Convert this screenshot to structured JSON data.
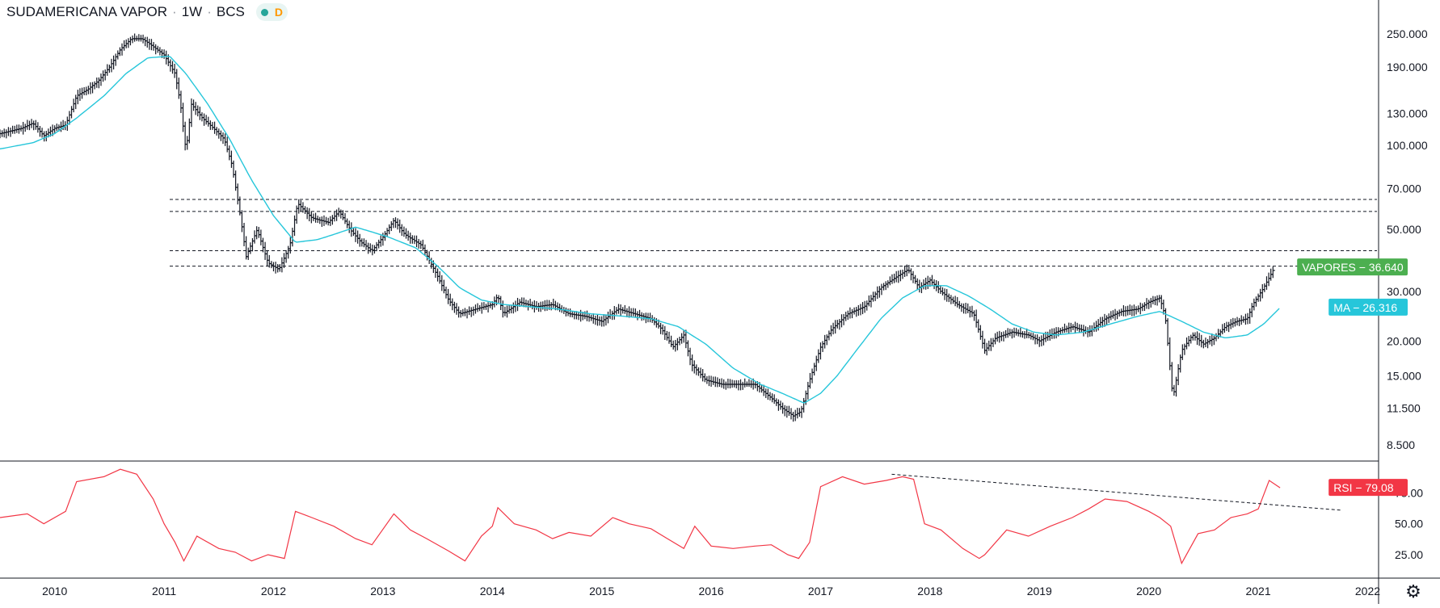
{
  "header": {
    "symbol_name": "SUDAMERICANA VAPOR",
    "interval": "1W",
    "exchange": "BCS",
    "status_label": "D"
  },
  "colors": {
    "candle": "#131722",
    "ma": "#26c6da",
    "rsi": "#f23645",
    "price_badge": "#4caf50",
    "ma_badge": "#26c6da",
    "rsi_badge": "#f23645",
    "dashed": "#131722",
    "axis": "#131722"
  },
  "icons": {
    "settings": "gear-icon",
    "status": "dot-icon"
  },
  "chart_data": [
    {
      "type": "ohlc",
      "title": "SUDAMERICANA VAPOR · 1W · BCS",
      "scale": "log",
      "ylim": [
        7500,
        330000
      ],
      "y_ticks": [
        "250.000",
        "190.000",
        "130.000",
        "100.000",
        "70.000",
        "50.000",
        "30.000",
        "20.000",
        "15.000",
        "11.500",
        "8.500"
      ],
      "y_tick_values": [
        250000,
        190000,
        130000,
        100000,
        70000,
        50000,
        30000,
        20000,
        15000,
        11500,
        8500
      ],
      "x_ticks": [
        "2010",
        "2011",
        "2012",
        "2013",
        "2014",
        "2015",
        "2016",
        "2017",
        "2018",
        "2019",
        "2020",
        "2021",
        "2022"
      ],
      "x_tick_values": [
        2010,
        2011,
        2012,
        2013,
        2014,
        2015,
        2016,
        2017,
        2018,
        2019,
        2020,
        2021,
        2022
      ],
      "xlim": [
        2009.5,
        2022.1
      ],
      "grid": false,
      "series": [
        {
          "name": "VAPORES",
          "last_value_label": "36.640",
          "points": [
            [
              2009.5,
              110000
            ],
            [
              2009.7,
              115000
            ],
            [
              2009.8,
              120000
            ],
            [
              2009.9,
              108000
            ],
            [
              2010.0,
              115000
            ],
            [
              2010.1,
              118000
            ],
            [
              2010.2,
              150000
            ],
            [
              2010.3,
              158000
            ],
            [
              2010.4,
              170000
            ],
            [
              2010.5,
              190000
            ],
            [
              2010.6,
              220000
            ],
            [
              2010.7,
              240000
            ],
            [
              2010.8,
              240000
            ],
            [
              2010.9,
              225000
            ],
            [
              2011.0,
              210000
            ],
            [
              2011.1,
              180000
            ],
            [
              2011.15,
              140000
            ],
            [
              2011.2,
              95000
            ],
            [
              2011.25,
              140000
            ],
            [
              2011.35,
              125000
            ],
            [
              2011.45,
              115000
            ],
            [
              2011.55,
              105000
            ],
            [
              2011.62,
              85000
            ],
            [
              2011.7,
              55000
            ],
            [
              2011.75,
              40000
            ],
            [
              2011.85,
              50000
            ],
            [
              2011.95,
              38000
            ],
            [
              2012.05,
              36000
            ],
            [
              2012.15,
              44000
            ],
            [
              2012.22,
              62000
            ],
            [
              2012.35,
              55000
            ],
            [
              2012.5,
              53000
            ],
            [
              2012.6,
              58000
            ],
            [
              2012.7,
              50000
            ],
            [
              2012.8,
              45000
            ],
            [
              2012.9,
              42000
            ],
            [
              2013.0,
              47000
            ],
            [
              2013.1,
              54000
            ],
            [
              2013.2,
              48000
            ],
            [
              2013.35,
              44000
            ],
            [
              2013.5,
              34000
            ],
            [
              2013.6,
              28000
            ],
            [
              2013.7,
              25000
            ],
            [
              2013.85,
              26000
            ],
            [
              2014.0,
              27000
            ],
            [
              2014.05,
              29000
            ],
            [
              2014.1,
              25000
            ],
            [
              2014.25,
              27500
            ],
            [
              2014.4,
              26500
            ],
            [
              2014.55,
              27000
            ],
            [
              2014.7,
              25000
            ],
            [
              2014.85,
              24500
            ],
            [
              2015.0,
              23500
            ],
            [
              2015.15,
              26000
            ],
            [
              2015.3,
              25000
            ],
            [
              2015.45,
              24000
            ],
            [
              2015.55,
              22000
            ],
            [
              2015.65,
              19000
            ],
            [
              2015.75,
              21000
            ],
            [
              2015.82,
              16500
            ],
            [
              2015.95,
              14500
            ],
            [
              2016.1,
              14000
            ],
            [
              2016.25,
              14000
            ],
            [
              2016.4,
              14000
            ],
            [
              2016.55,
              12500
            ],
            [
              2016.65,
              11500
            ],
            [
              2016.75,
              10800
            ],
            [
              2016.82,
              11200
            ],
            [
              2016.9,
              14500
            ],
            [
              2017.0,
              19000
            ],
            [
              2017.1,
              22000
            ],
            [
              2017.25,
              25000
            ],
            [
              2017.4,
              26500
            ],
            [
              2017.55,
              31000
            ],
            [
              2017.7,
              34000
            ],
            [
              2017.8,
              36000
            ],
            [
              2017.9,
              31000
            ],
            [
              2018.0,
              33000
            ],
            [
              2018.1,
              30000
            ],
            [
              2018.25,
              27000
            ],
            [
              2018.4,
              25000
            ],
            [
              2018.5,
              18500
            ],
            [
              2018.6,
              20500
            ],
            [
              2018.75,
              21500
            ],
            [
              2018.9,
              21000
            ],
            [
              2019.0,
              20000
            ],
            [
              2019.15,
              21500
            ],
            [
              2019.3,
              22500
            ],
            [
              2019.45,
              21500
            ],
            [
              2019.6,
              24000
            ],
            [
              2019.75,
              25500
            ],
            [
              2019.9,
              26000
            ],
            [
              2020.0,
              27500
            ],
            [
              2020.1,
              28500
            ],
            [
              2020.15,
              24500
            ],
            [
              2020.22,
              12500
            ],
            [
              2020.3,
              18500
            ],
            [
              2020.4,
              21000
            ],
            [
              2020.5,
              19500
            ],
            [
              2020.6,
              20500
            ],
            [
              2020.7,
              22500
            ],
            [
              2020.8,
              23500
            ],
            [
              2020.9,
              24000
            ],
            [
              2020.95,
              27000
            ],
            [
              2021.05,
              31000
            ],
            [
              2021.15,
              36640
            ]
          ]
        },
        {
          "name": "MA",
          "last_value_label": "26.316",
          "points": [
            [
              2009.5,
              97000
            ],
            [
              2009.8,
              102000
            ],
            [
              2010.0,
              110000
            ],
            [
              2010.2,
              125000
            ],
            [
              2010.45,
              150000
            ],
            [
              2010.65,
              180000
            ],
            [
              2010.85,
              205000
            ],
            [
              2011.05,
              208000
            ],
            [
              2011.2,
              180000
            ],
            [
              2011.4,
              140000
            ],
            [
              2011.6,
              105000
            ],
            [
              2011.8,
              75000
            ],
            [
              2012.0,
              56000
            ],
            [
              2012.2,
              45000
            ],
            [
              2012.4,
              46000
            ],
            [
              2012.55,
              48000
            ],
            [
              2012.75,
              51000
            ],
            [
              2012.9,
              49000
            ],
            [
              2013.05,
              47000
            ],
            [
              2013.3,
              43000
            ],
            [
              2013.5,
              37000
            ],
            [
              2013.7,
              31000
            ],
            [
              2013.9,
              28000
            ],
            [
              2014.1,
              27000
            ],
            [
              2014.35,
              26500
            ],
            [
              2014.6,
              26000
            ],
            [
              2014.9,
              25000
            ],
            [
              2015.2,
              24500
            ],
            [
              2015.45,
              24000
            ],
            [
              2015.7,
              22500
            ],
            [
              2015.95,
              19500
            ],
            [
              2016.2,
              16000
            ],
            [
              2016.45,
              14000
            ],
            [
              2016.65,
              13000
            ],
            [
              2016.85,
              12000
            ],
            [
              2017.0,
              13000
            ],
            [
              2017.15,
              15000
            ],
            [
              2017.35,
              19000
            ],
            [
              2017.55,
              24000
            ],
            [
              2017.75,
              28500
            ],
            [
              2017.95,
              31500
            ],
            [
              2018.15,
              31500
            ],
            [
              2018.35,
              29000
            ],
            [
              2018.55,
              26000
            ],
            [
              2018.75,
              23000
            ],
            [
              2018.95,
              21500
            ],
            [
              2019.15,
              21000
            ],
            [
              2019.4,
              21500
            ],
            [
              2019.65,
              23000
            ],
            [
              2019.9,
              24500
            ],
            [
              2020.1,
              25500
            ],
            [
              2020.3,
              23500
            ],
            [
              2020.5,
              21500
            ],
            [
              2020.7,
              20500
            ],
            [
              2020.9,
              21000
            ],
            [
              2021.05,
              23000
            ],
            [
              2021.2,
              26316
            ]
          ]
        }
      ],
      "horizontal_levels": [
        64000,
        58000,
        42000,
        37000
      ]
    },
    {
      "type": "line",
      "title": "RSI",
      "ylim": [
        10,
        100
      ],
      "y_ticks": [
        "75.00",
        "50.00",
        "25.00"
      ],
      "y_tick_values": [
        75,
        50,
        25
      ],
      "x": [
        2009.5,
        2009.75,
        2009.9,
        2010.1,
        2010.2,
        2010.45,
        2010.6,
        2010.75,
        2010.9,
        2011.0,
        2011.1,
        2011.18,
        2011.3,
        2011.5,
        2011.65,
        2011.8,
        2011.95,
        2012.1,
        2012.2,
        2012.35,
        2012.55,
        2012.75,
        2012.9,
        2013.1,
        2013.25,
        2013.4,
        2013.6,
        2013.75,
        2013.9,
        2014.0,
        2014.05,
        2014.2,
        2014.4,
        2014.55,
        2014.7,
        2014.9,
        2015.1,
        2015.25,
        2015.45,
        2015.6,
        2015.75,
        2015.85,
        2016.0,
        2016.2,
        2016.4,
        2016.55,
        2016.7,
        2016.8,
        2016.9,
        2017.0,
        2017.2,
        2017.4,
        2017.6,
        2017.75,
        2017.85,
        2017.95,
        2018.1,
        2018.3,
        2018.45,
        2018.5,
        2018.7,
        2018.9,
        2019.1,
        2019.3,
        2019.45,
        2019.6,
        2019.8,
        2020.0,
        2020.1,
        2020.2,
        2020.3,
        2020.45,
        2020.6,
        2020.75,
        2020.9,
        2021.0,
        2021.1,
        2021.2
      ],
      "y": [
        55,
        58,
        50,
        60,
        84,
        88,
        94,
        90,
        70,
        50,
        35,
        20,
        40,
        30,
        27,
        20,
        25,
        22,
        60,
        55,
        48,
        38,
        33,
        58,
        45,
        38,
        28,
        20,
        40,
        48,
        63,
        50,
        45,
        38,
        43,
        40,
        55,
        50,
        46,
        38,
        30,
        48,
        32,
        30,
        32,
        33,
        25,
        22,
        35,
        80,
        88,
        82,
        85,
        88,
        86,
        50,
        45,
        30,
        22,
        25,
        45,
        40,
        48,
        55,
        62,
        70,
        68,
        60,
        55,
        48,
        18,
        42,
        45,
        55,
        58,
        62,
        85,
        79.08
      ],
      "series_name": "RSI",
      "last_value_label": "79.08",
      "trendline": [
        [
          2017.65,
          90
        ],
        [
          2021.75,
          61
        ]
      ]
    }
  ]
}
